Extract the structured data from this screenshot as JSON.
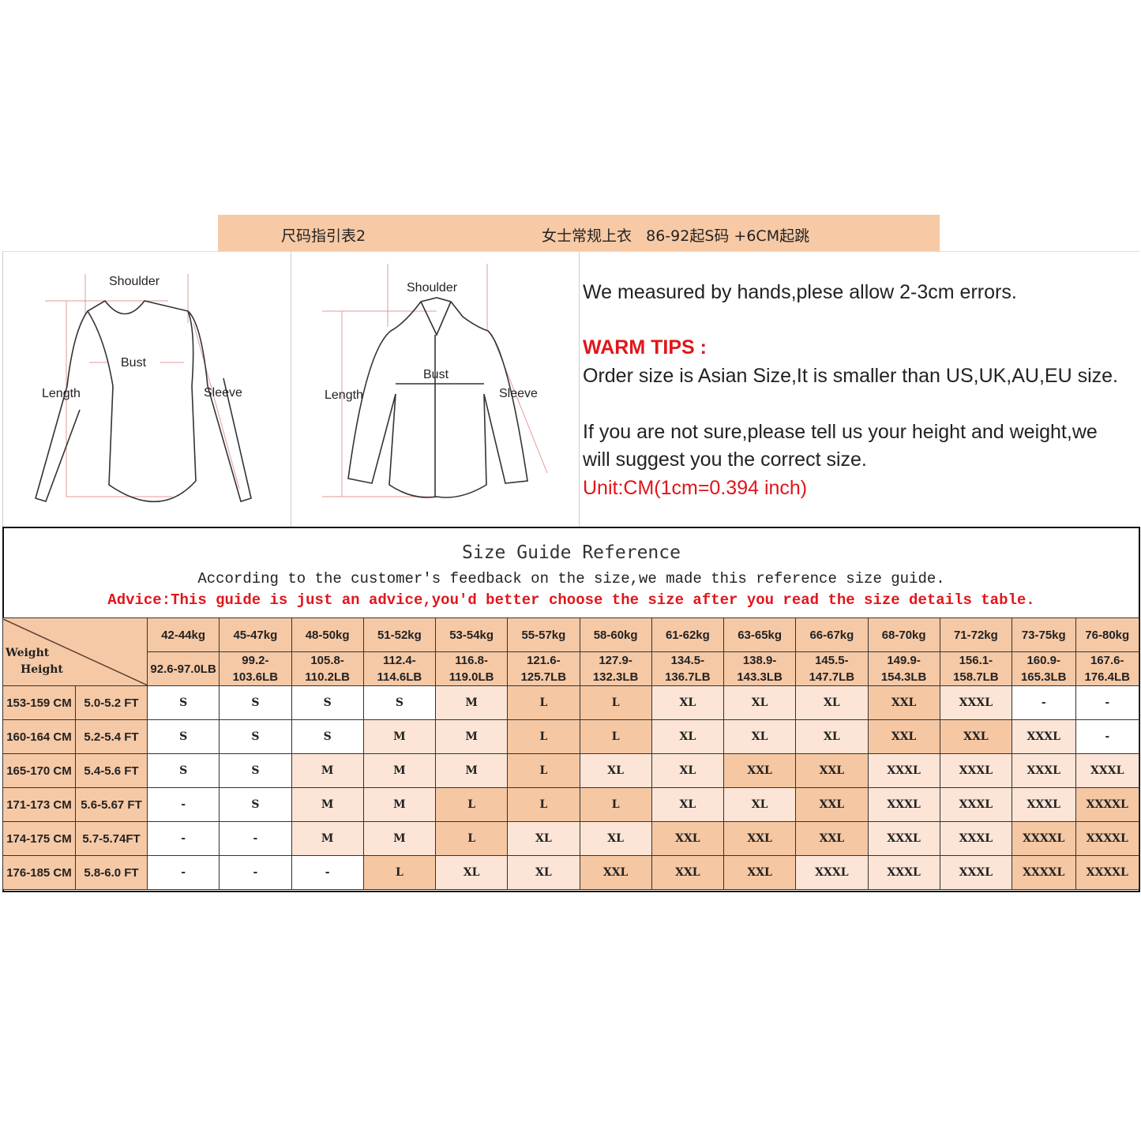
{
  "header": {
    "left": "尺码指引表2",
    "right": "女士常规上衣   86-92起S码 +6CM起跳",
    "color": "#f7c9a5"
  },
  "diagrams": {
    "tshirt": {
      "shoulder": "Shoulder",
      "bust": "Bust",
      "length": "Length",
      "sleeve": "Sleeve"
    },
    "shirt": {
      "shoulder": "Shoulder",
      "bust": "Bust",
      "length": "Length",
      "sleeve": "Sleeve"
    }
  },
  "notes": {
    "measured": "We measured by hands,plese allow 2-3cm errors.",
    "warm_title": "WARM TIPS :",
    "asian": "Order size is Asian Size,It is smaller than US,UK,AU,EU size.",
    "suggest1": "If you are not sure,please tell us your height and weight,we",
    "suggest2": "will suggest you the correct size.",
    "unit": "Unit:CM(1cm=0.394 inch)"
  },
  "guide": {
    "title": "Size Guide Reference",
    "subtitle": "According to the customer's feedback on the size,we made this reference size guide.",
    "advice": "Advice:This guide is just an advice,you'd better choose the size after you read the size details table."
  },
  "table": {
    "corner_weight": "Weight",
    "corner_height": "Height",
    "weights_kg": [
      "42-44kg",
      "45-47kg",
      "48-50kg",
      "51-52kg",
      "53-54kg",
      "55-57kg",
      "58-60kg",
      "61-62kg",
      "63-65kg",
      "66-67kg",
      "68-70kg",
      "71-72kg",
      "73-75kg",
      "76-80kg"
    ],
    "weights_lb": [
      "92.6-97.0LB",
      "99.2-103.6LB",
      "105.8-110.2LB",
      "112.4-114.6LB",
      "116.8-119.0LB",
      "121.6-125.7LB",
      "127.9-132.3LB",
      "134.5-136.7LB",
      "138.9-143.3LB",
      "145.5-147.7LB",
      "149.9-154.3LB",
      "156.1-158.7LB",
      "160.9-165.3LB",
      "167.6-176.4LB"
    ],
    "shade_colors": {
      "0": "#ffffff",
      "1": "#fce5d6",
      "2": "#f5c7a3"
    },
    "rows": [
      {
        "cm": "153-159 CM",
        "ft": "5.0-5.2 FT",
        "sizes": [
          "S",
          "S",
          "S",
          "S",
          "M",
          "L",
          "L",
          "XL",
          "XL",
          "XL",
          "XXL",
          "XXXL",
          "-",
          "-"
        ],
        "shades": [
          0,
          0,
          0,
          0,
          1,
          2,
          2,
          1,
          1,
          1,
          2,
          1,
          0,
          0
        ]
      },
      {
        "cm": "160-164 CM",
        "ft": "5.2-5.4 FT",
        "sizes": [
          "S",
          "S",
          "S",
          "M",
          "M",
          "L",
          "L",
          "XL",
          "XL",
          "XL",
          "XXL",
          "XXL",
          "XXXL",
          "-"
        ],
        "shades": [
          0,
          0,
          0,
          1,
          1,
          2,
          2,
          1,
          1,
          1,
          2,
          2,
          1,
          0
        ]
      },
      {
        "cm": "165-170 CM",
        "ft": "5.4-5.6 FT",
        "sizes": [
          "S",
          "S",
          "M",
          "M",
          "M",
          "L",
          "XL",
          "XL",
          "XXL",
          "XXL",
          "XXXL",
          "XXXL",
          "XXXL",
          "XXXL"
        ],
        "shades": [
          0,
          0,
          1,
          1,
          1,
          2,
          1,
          1,
          2,
          2,
          1,
          1,
          1,
          1
        ]
      },
      {
        "cm": "171-173 CM",
        "ft": "5.6-5.67 FT",
        "sizes": [
          "-",
          "S",
          "M",
          "M",
          "L",
          "L",
          "L",
          "XL",
          "XL",
          "XXL",
          "XXXL",
          "XXXL",
          "XXXL",
          "XXXXL"
        ],
        "shades": [
          0,
          0,
          1,
          1,
          2,
          2,
          2,
          1,
          1,
          2,
          1,
          1,
          1,
          2
        ]
      },
      {
        "cm": "174-175 CM",
        "ft": "5.7-5.74FT",
        "sizes": [
          "-",
          "-",
          "M",
          "M",
          "L",
          "XL",
          "XL",
          "XXL",
          "XXL",
          "XXL",
          "XXXL",
          "XXXL",
          "XXXXL",
          "XXXXL"
        ],
        "shades": [
          0,
          0,
          1,
          1,
          2,
          1,
          1,
          2,
          2,
          2,
          1,
          1,
          2,
          2
        ]
      },
      {
        "cm": "176-185 CM",
        "ft": "5.8-6.0 FT",
        "sizes": [
          "-",
          "-",
          "-",
          "L",
          "XL",
          "XL",
          "XXL",
          "XXL",
          "XXL",
          "XXXL",
          "XXXL",
          "XXXL",
          "XXXXL",
          "XXXXL"
        ],
        "shades": [
          0,
          0,
          0,
          2,
          1,
          1,
          2,
          2,
          2,
          1,
          1,
          1,
          2,
          2
        ]
      }
    ]
  }
}
